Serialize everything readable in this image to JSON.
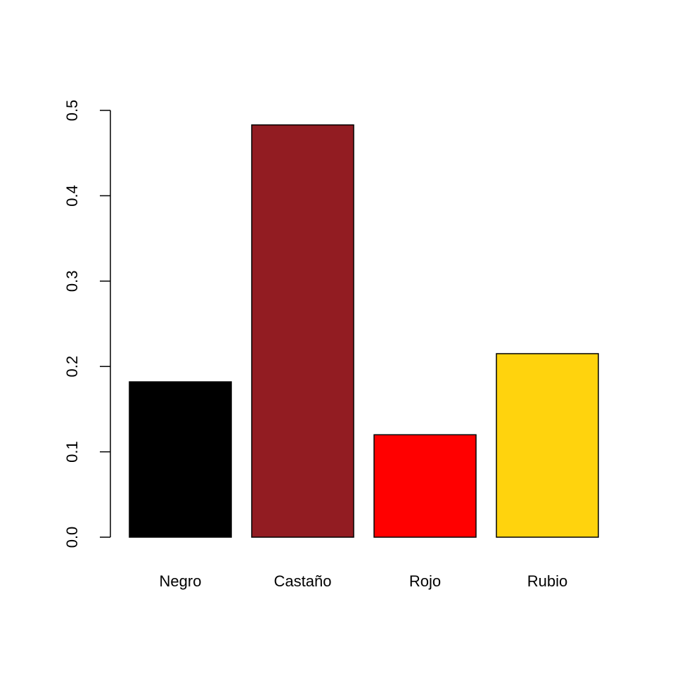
{
  "chart_data": {
    "type": "bar",
    "title": "",
    "xlabel": "",
    "ylabel": "",
    "categories": [
      "Negro",
      "Castaño",
      "Rojo",
      "Rubio"
    ],
    "values": [
      0.182,
      0.483,
      0.12,
      0.215
    ],
    "colors": [
      "#000000",
      "#921C22",
      "#FF0000",
      "#FFD30D"
    ],
    "ylim": [
      0,
      0.5
    ],
    "yticks": [
      0.0,
      0.1,
      0.2,
      0.3,
      0.4,
      0.5
    ],
    "ytick_labels": [
      "0.0",
      "0.1",
      "0.2",
      "0.3",
      "0.4",
      "0.5"
    ],
    "grid": false,
    "legend": "none"
  }
}
